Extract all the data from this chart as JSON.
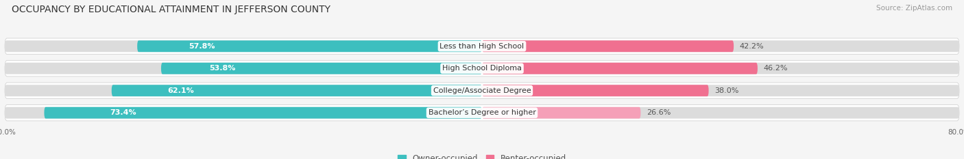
{
  "title": "OCCUPANCY BY EDUCATIONAL ATTAINMENT IN JEFFERSON COUNTY",
  "source": "Source: ZipAtlas.com",
  "categories": [
    "Less than High School",
    "High School Diploma",
    "College/Associate Degree",
    "Bachelor’s Degree or higher"
  ],
  "owner_values": [
    57.8,
    53.8,
    62.1,
    73.4
  ],
  "renter_values": [
    42.2,
    46.2,
    38.0,
    26.6
  ],
  "owner_color": "#3DBFBF",
  "renter_colors": [
    "#F07090",
    "#F07090",
    "#F07090",
    "#F5A0B8"
  ],
  "owner_label": "Owner-occupied",
  "renter_label": "Renter-occupied",
  "fig_bg": "#f5f5f5",
  "row_bg": "#e8e8e8",
  "bar_bg_left": "#dcdcdc",
  "bar_bg_right": "#dcdcdc",
  "xlim": 80.0,
  "title_fontsize": 10,
  "source_fontsize": 7.5,
  "bar_label_fontsize": 8,
  "category_fontsize": 8,
  "legend_fontsize": 8.5,
  "axis_label_fontsize": 7.5
}
